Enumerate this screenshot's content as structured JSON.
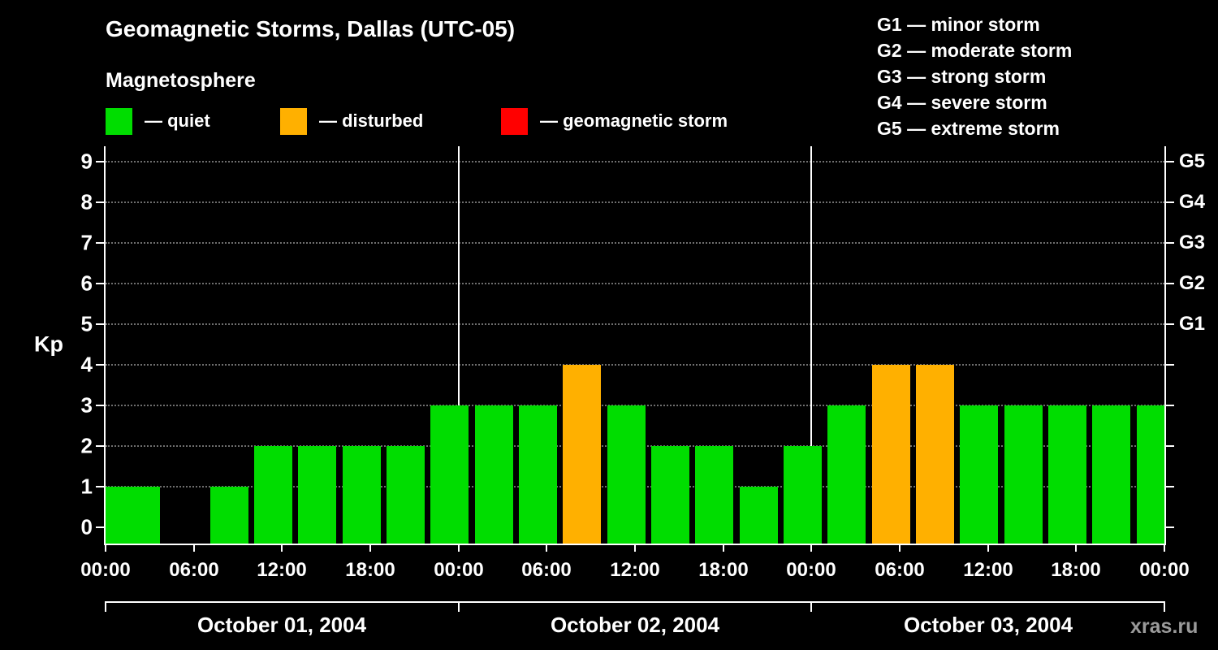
{
  "header": {
    "title": "Geomagnetic Storms, Dallas (UTC-05)",
    "subtitle": "Magnetosphere"
  },
  "legend": {
    "items": [
      {
        "name": "quiet",
        "label": "— quiet",
        "color": "#00dd00"
      },
      {
        "name": "disturbed",
        "label": "— disturbed",
        "color": "#ffb000"
      },
      {
        "name": "storm",
        "label": "— geomagnetic storm",
        "color": "#ff0000"
      }
    ]
  },
  "g_scale_legend": [
    "G1 — minor storm",
    "G2 — moderate storm",
    "G3 — strong storm",
    "G4 — severe storm",
    "G5 — extreme storm"
  ],
  "watermark": "xras.ru",
  "chart_data": {
    "type": "bar",
    "title": "Geomagnetic Storms, Dallas (UTC-05)",
    "subtitle": "Magnetosphere",
    "ylabel": "Kp",
    "ylim": [
      0,
      9.6
    ],
    "y_ticks": [
      0,
      1,
      2,
      3,
      4,
      5,
      6,
      7,
      8,
      9
    ],
    "right_axis": [
      {
        "kp": 5,
        "label": "G1"
      },
      {
        "kp": 6,
        "label": "G2"
      },
      {
        "kp": 7,
        "label": "G3"
      },
      {
        "kp": 8,
        "label": "G4"
      },
      {
        "kp": 9,
        "label": "G5"
      }
    ],
    "x_tick_labels": [
      "00:00",
      "06:00",
      "12:00",
      "18:00",
      "00:00",
      "06:00",
      "12:00",
      "18:00",
      "00:00",
      "06:00",
      "12:00",
      "18:00",
      "00:00"
    ],
    "interval_hours": 3,
    "days": [
      {
        "date": "October 01, 2004",
        "kp": [
          1,
          0,
          1,
          2,
          2,
          2,
          2,
          3
        ]
      },
      {
        "date": "October 02, 2004",
        "kp": [
          3,
          3,
          4,
          3,
          2,
          2,
          1,
          2
        ]
      },
      {
        "date": "October 03, 2004",
        "kp": [
          3,
          4,
          4,
          3,
          3,
          3,
          3,
          3
        ]
      }
    ],
    "leading_partial_bar_kp": 1,
    "colors": {
      "quiet": "#00dd00",
      "disturbed": "#ffb000",
      "storm": "#ff0000"
    },
    "color_rule": {
      "quiet_max_kp": 3,
      "disturbed_kp": 4,
      "storm_min_kp": 5
    },
    "grid": true,
    "legend_position": "top"
  }
}
